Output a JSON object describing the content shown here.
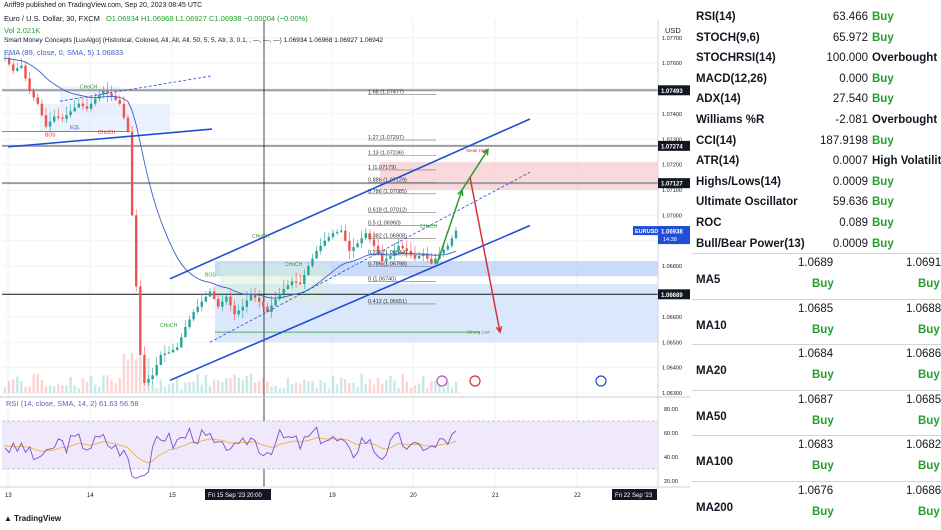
{
  "header": {
    "publisher": "Ariff99 published on TradingView.com, Sep 20, 2023 08:45 UTC",
    "symbol_line": "Euro / U.S. Dollar, 30, FXCM",
    "ohlc": "O1.06934 H1.06968 L1.06927 C1.06938 −0.00004 (−0.00%)",
    "vol": "Vol  2.021K",
    "smc": "Smart Money Concepts [LuxAlgo] (Historical, Colored, All, All, All, 50, 5, 5, Atr, 3, 0.1, , —, —, —)  1.06934  1.06968  1.06927  1.06942",
    "ema": "EMA (89, close, 0, SMA, 5)  1.06833",
    "currency": "USD",
    "rsi_label": "RSI (14, close, SMA, 14, 2)  61.63  56.58",
    "brand": "TradingView"
  },
  "chart_data": {
    "type": "candlestick",
    "symbol": "EURUSD",
    "timeframe": "30",
    "price_scale": [
      1.063,
      1.0777
    ],
    "price_ticks": [
      "1.07700",
      "1.07600",
      "1.07500",
      "1.07400",
      "1.07300",
      "1.07200",
      "1.07100",
      "1.07000",
      "1.06900",
      "1.06800",
      "1.06700",
      "1.06600",
      "1.06500",
      "1.06400",
      "1.06300"
    ],
    "price_tick_values": [
      1.077,
      1.076,
      1.075,
      1.074,
      1.073,
      1.072,
      1.071,
      1.07,
      1.069,
      1.068,
      1.067,
      1.066,
      1.065,
      1.064,
      1.063
    ],
    "x_labels": [
      "13",
      "14",
      "15",
      "19",
      "20",
      "21",
      "22"
    ],
    "time_highlights": [
      "Fri 15 Sep '23  20:00",
      "Fri 22 Sep '23"
    ],
    "price_labels": [
      {
        "value": 1.07493,
        "text": "1.07493"
      },
      {
        "value": 1.07274,
        "text": "1.07274"
      },
      {
        "value": 1.07127,
        "text": "1.07127"
      },
      {
        "value": 1.06938,
        "text": "1.06938"
      },
      {
        "value": 1.06689,
        "text": "1.06689"
      }
    ],
    "last_price": {
      "symbol": "EURUSD",
      "value": "1.06938",
      "countdown": "14:38"
    },
    "fib_levels": [
      {
        "ratio": "1.68",
        "value": 1.07477,
        "text": "1.68 (1.07477)"
      },
      {
        "ratio": "1.27",
        "value": 1.07297,
        "text": "1.27 (1.07297)"
      },
      {
        "ratio": "1.13",
        "value": 1.07236,
        "text": "1.13 (1.07236)"
      },
      {
        "ratio": "1",
        "value": 1.07179,
        "text": "1 (1.07179)"
      },
      {
        "ratio": "0.886",
        "value": 1.07129,
        "text": "0.886 (1.07129)"
      },
      {
        "ratio": "0.786",
        "value": 1.07085,
        "text": "0.786 (1.07085)"
      },
      {
        "ratio": "0.618",
        "value": 1.07012,
        "text": "0.618 (1.07012)"
      },
      {
        "ratio": "0.5",
        "value": 1.0696,
        "text": "0.5 (1.06960)"
      },
      {
        "ratio": "0.382",
        "value": 1.06908,
        "text": "0.382 (1.06908)"
      },
      {
        "ratio": "0.236",
        "value": 1.06844,
        "text": "0.236 (1.06844)"
      },
      {
        "ratio": "0.786",
        "value": 1.06798,
        "text": "0.786 (1.06798)"
      },
      {
        "ratio": "0",
        "value": 1.0674,
        "text": "0 (1.06740)"
      },
      {
        "ratio": "0.412",
        "value": 1.06651,
        "text": "0.412 (1.06651)"
      }
    ],
    "labels": {
      "bos": "BOS",
      "eql": "EQL",
      "choch": "CHoCH",
      "weak_high": "Weak High",
      "strong_low": "Strong Low"
    },
    "rsi": {
      "ticks": [
        "80.00",
        "60.00",
        "40.00",
        "20.00"
      ],
      "tick_values": [
        80,
        60,
        40,
        20
      ],
      "upper": 70,
      "lower": 30,
      "range": [
        15,
        90
      ],
      "value": 61.63,
      "ma_value": 56.58
    },
    "price_path": [
      [
        0,
        1.0762
      ],
      [
        2,
        1.0757
      ],
      [
        4,
        1.0759
      ],
      [
        6,
        1.0749
      ],
      [
        8,
        1.0744
      ],
      [
        10,
        1.0735
      ],
      [
        12,
        1.0739
      ],
      [
        14,
        1.0738
      ],
      [
        16,
        1.0741
      ],
      [
        18,
        1.0744
      ],
      [
        20,
        1.0742
      ],
      [
        22,
        1.0746
      ],
      [
        24,
        1.0749
      ],
      [
        26,
        1.0747
      ],
      [
        28,
        1.0744
      ],
      [
        30,
        1.0733
      ],
      [
        31,
        1.07
      ],
      [
        32,
        1.0672
      ],
      [
        33,
        1.0645
      ],
      [
        34,
        1.0634
      ],
      [
        36,
        1.0637
      ],
      [
        38,
        1.0645
      ],
      [
        40,
        1.0646
      ],
      [
        42,
        1.0648
      ],
      [
        44,
        1.0656
      ],
      [
        46,
        1.0662
      ],
      [
        48,
        1.0666
      ],
      [
        50,
        1.067
      ],
      [
        52,
        1.0664
      ],
      [
        54,
        1.0668
      ],
      [
        56,
        1.0661
      ],
      [
        58,
        1.0664
      ],
      [
        60,
        1.0669
      ],
      [
        62,
        1.0666
      ],
      [
        64,
        1.0662
      ],
      [
        66,
        1.0667
      ],
      [
        68,
        1.0671
      ],
      [
        70,
        1.0674
      ],
      [
        72,
        1.0673
      ],
      [
        74,
        1.068
      ],
      [
        76,
        1.0686
      ],
      [
        78,
        1.069
      ],
      [
        80,
        1.0693
      ],
      [
        82,
        1.0694
      ],
      [
        84,
        1.0686
      ],
      [
        86,
        1.0689
      ],
      [
        88,
        1.0693
      ],
      [
        90,
        1.0688
      ],
      [
        92,
        1.0682
      ],
      [
        94,
        1.0684
      ],
      [
        96,
        1.0688
      ],
      [
        98,
        1.0686
      ],
      [
        100,
        1.0683
      ],
      [
        102,
        1.0685
      ],
      [
        104,
        1.0681
      ],
      [
        106,
        1.0685
      ],
      [
        108,
        1.0688
      ],
      [
        110,
        1.0694
      ]
    ]
  },
  "indicators": [
    {
      "name": "RSI(14)",
      "value": "63.466",
      "signal": "Buy"
    },
    {
      "name": "STOCH(9,6)",
      "value": "65.972",
      "signal": "Buy"
    },
    {
      "name": "STOCHRSI(14)",
      "value": "100.000",
      "signal": "Overbought"
    },
    {
      "name": "MACD(12,26)",
      "value": "0.000",
      "signal": "Buy"
    },
    {
      "name": "ADX(14)",
      "value": "27.540",
      "signal": "Buy"
    },
    {
      "name": "Williams %R",
      "value": "-2.081",
      "signal": "Overbought"
    },
    {
      "name": "CCI(14)",
      "value": "187.9198",
      "signal": "Buy"
    },
    {
      "name": "ATR(14)",
      "value": "0.0007",
      "signal": "High Volatility"
    },
    {
      "name": "Highs/Lows(14)",
      "value": "0.0009",
      "signal": "Buy"
    },
    {
      "name": "Ultimate Oscillator",
      "value": "59.636",
      "signal": "Buy"
    },
    {
      "name": "ROC",
      "value": "0.089",
      "signal": "Buy"
    },
    {
      "name": "Bull/Bear Power(13)",
      "value": "0.0009",
      "signal": "Buy"
    }
  ],
  "moving_averages": [
    {
      "name": "MA5",
      "simple": "1.0689",
      "exponential": "1.0691",
      "simple_signal": "Buy",
      "exponential_signal": "Buy"
    },
    {
      "name": "MA10",
      "simple": "1.0685",
      "exponential": "1.0688",
      "simple_signal": "Buy",
      "exponential_signal": "Buy"
    },
    {
      "name": "MA20",
      "simple": "1.0684",
      "exponential": "1.0686",
      "simple_signal": "Buy",
      "exponential_signal": "Buy"
    },
    {
      "name": "MA50",
      "simple": "1.0687",
      "exponential": "1.0685",
      "simple_signal": "Buy",
      "exponential_signal": "Buy"
    },
    {
      "name": "MA100",
      "simple": "1.0683",
      "exponential": "1.0682",
      "simple_signal": "Buy",
      "exponential_signal": "Buy"
    },
    {
      "name": "MA200",
      "simple": "1.0676",
      "exponential": "1.0686",
      "simple_signal": "Buy",
      "exponential_signal": "Buy"
    }
  ],
  "colors": {
    "buy": "#22a02a",
    "channel": "#1f4fd6",
    "green_arrow": "#2e9b2e",
    "red_arrow": "#d6323a",
    "ema": "#3f5fc4",
    "rsi": "#7b4fc8",
    "rsi_ma": "#e6b640"
  }
}
